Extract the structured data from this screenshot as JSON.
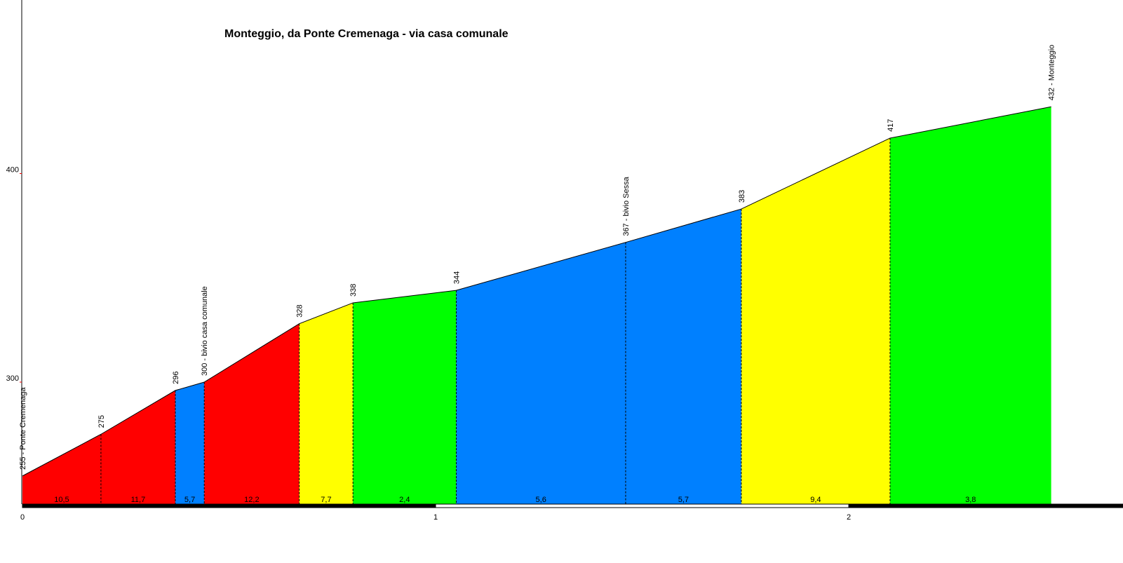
{
  "chart_data": {
    "type": "area",
    "title": "Monteggio, da Ponte Cremenaga - via casa comunale",
    "xlabel": "",
    "ylabel": "",
    "xlim": [
      0,
      2.61
    ],
    "ylim": [
      242,
      500
    ],
    "x_ticks": [
      "0",
      "1",
      "2"
    ],
    "y_ticks": [
      "300",
      "400"
    ],
    "points": [
      {
        "x": 0.0,
        "y": 255,
        "label": "255 - Ponte Cremenaga"
      },
      {
        "x": 0.19,
        "y": 275,
        "label": "275"
      },
      {
        "x": 0.37,
        "y": 296,
        "label": "296"
      },
      {
        "x": 0.44,
        "y": 300,
        "label": "300 - bivio casa comunale"
      },
      {
        "x": 0.67,
        "y": 328,
        "label": "328"
      },
      {
        "x": 0.8,
        "y": 338,
        "label": "338"
      },
      {
        "x": 1.05,
        "y": 344,
        "label": "344"
      },
      {
        "x": 1.46,
        "y": 367,
        "label": "367 - bivio Sessa"
      },
      {
        "x": 1.74,
        "y": 383,
        "label": "383"
      },
      {
        "x": 2.1,
        "y": 417,
        "label": "417"
      },
      {
        "x": 2.49,
        "y": 432,
        "label": "432 - Monteggio"
      }
    ],
    "segments": [
      {
        "gradient": "10,5",
        "color": "#ff0000"
      },
      {
        "gradient": "11,7",
        "color": "#ff0000"
      },
      {
        "gradient": "5,7",
        "color": "#0080ff"
      },
      {
        "gradient": "12,2",
        "color": "#ff0000"
      },
      {
        "gradient": "7,7",
        "color": "#ffff00"
      },
      {
        "gradient": "2,4",
        "color": "#00ff00"
      },
      {
        "gradient": "5,6",
        "color": "#0080ff"
      },
      {
        "gradient": "5,7",
        "color": "#0080ff"
      },
      {
        "gradient": "9,4",
        "color": "#ffff00"
      },
      {
        "gradient": "3,8",
        "color": "#00ff00"
      }
    ],
    "grid": false,
    "legend": "none"
  }
}
